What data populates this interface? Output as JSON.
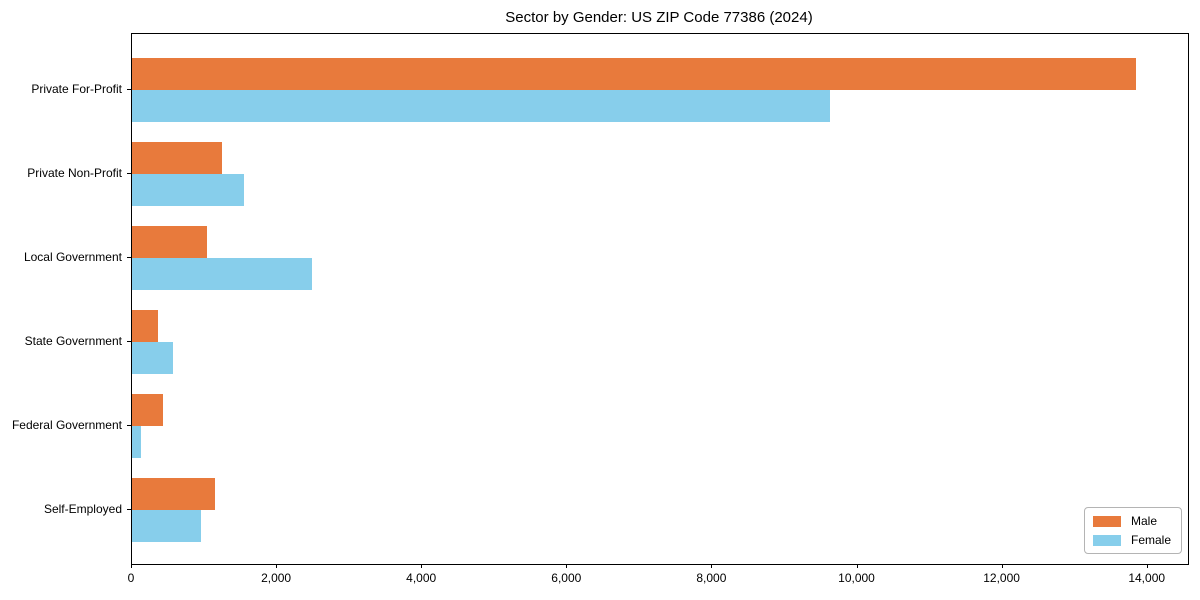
{
  "figure": {
    "title": "Sector by Gender: US ZIP Code 77386 (2024)"
  },
  "chart_data": {
    "type": "bar",
    "orientation": "horizontal",
    "title": "Sector by Gender: US ZIP Code 77386 (2024)",
    "categories": [
      "Private For-Profit",
      "Private Non-Profit",
      "Local Government",
      "State Government",
      "Federal Government",
      "Self-Employed"
    ],
    "series": [
      {
        "name": "Male",
        "color": "#E87A3C",
        "values": [
          13840,
          1240,
          1030,
          360,
          430,
          1150
        ]
      },
      {
        "name": "Female",
        "color": "#87CEEB",
        "values": [
          9620,
          1540,
          2480,
          560,
          120,
          950
        ]
      }
    ],
    "xlabel": "",
    "ylabel": "",
    "xlim": [
      0,
      14555
    ],
    "xticks": [
      {
        "value": 0,
        "label": "0"
      },
      {
        "value": 2000,
        "label": "2,000"
      },
      {
        "value": 4000,
        "label": "4,000"
      },
      {
        "value": 6000,
        "label": "6,000"
      },
      {
        "value": 8000,
        "label": "8,000"
      },
      {
        "value": 10000,
        "label": "10,000"
      },
      {
        "value": 12000,
        "label": "12,000"
      },
      {
        "value": 14000,
        "label": "14,000"
      }
    ],
    "grid": false,
    "legend_position": "lower right"
  }
}
